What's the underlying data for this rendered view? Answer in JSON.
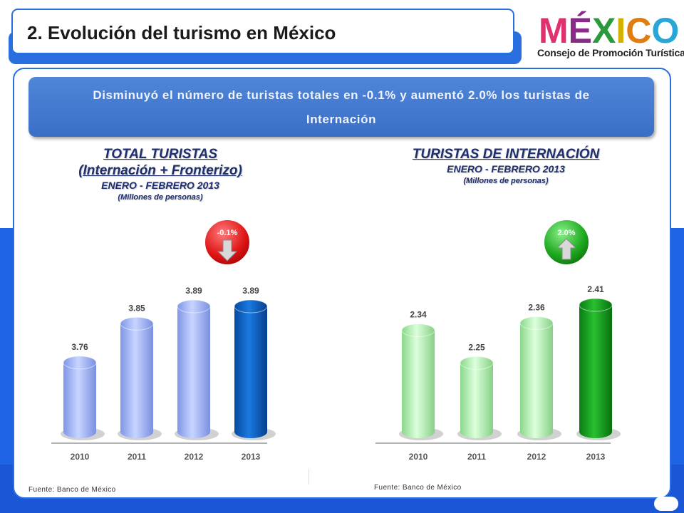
{
  "slide": {
    "title": "2. Evolución del turismo en México",
    "logo_word": "MÉXICO",
    "logo_subtitle": "Consejo de Promoción Turística",
    "banner_line1": "Disminuyó el número de turistas totales en  -0.1%  y aumentó 2.0% los turistas de",
    "banner_line2": "Internación",
    "source_left": "Fuente: Banco de México",
    "source_right": "Fuente: Banco de México"
  },
  "colors": {
    "brand_blue": "#2a6fe0",
    "bar_light_blue": "#9fb4f5",
    "bar_dark_blue": "#0b5dc0",
    "bar_light_green": "#b6f0b6",
    "bar_dark_green": "#16a020",
    "badge_red": "#e02020",
    "badge_green": "#22aa22"
  },
  "chart_data": [
    {
      "type": "bar",
      "title": "TOTAL TURISTAS",
      "subtitle_line1": "(Internación + Fronterizo)",
      "subtitle_line2": "ENERO - FEBRERO 2013",
      "unit": "(Millones de personas)",
      "categories": [
        "2010",
        "2011",
        "2012",
        "2013"
      ],
      "values": [
        3.76,
        3.85,
        3.89,
        3.89
      ],
      "value_labels": [
        "3.76",
        "3.85",
        "3.89",
        "3.89"
      ],
      "change_badge": "-0.1%",
      "badge_icon": "arrow-down-icon"
    },
    {
      "type": "bar",
      "title": "TURISTAS DE INTERNACIÓN",
      "subtitle_line1": "ENERO - FEBRERO 2013",
      "unit": "(Millones de personas)",
      "categories": [
        "2010",
        "2011",
        "2012",
        "2013"
      ],
      "values": [
        2.34,
        2.25,
        2.36,
        2.41
      ],
      "value_labels": [
        "2.34",
        "2.25",
        "2.36",
        "2.41"
      ],
      "change_badge": "2.0%",
      "badge_icon": "arrow-up-icon"
    }
  ]
}
